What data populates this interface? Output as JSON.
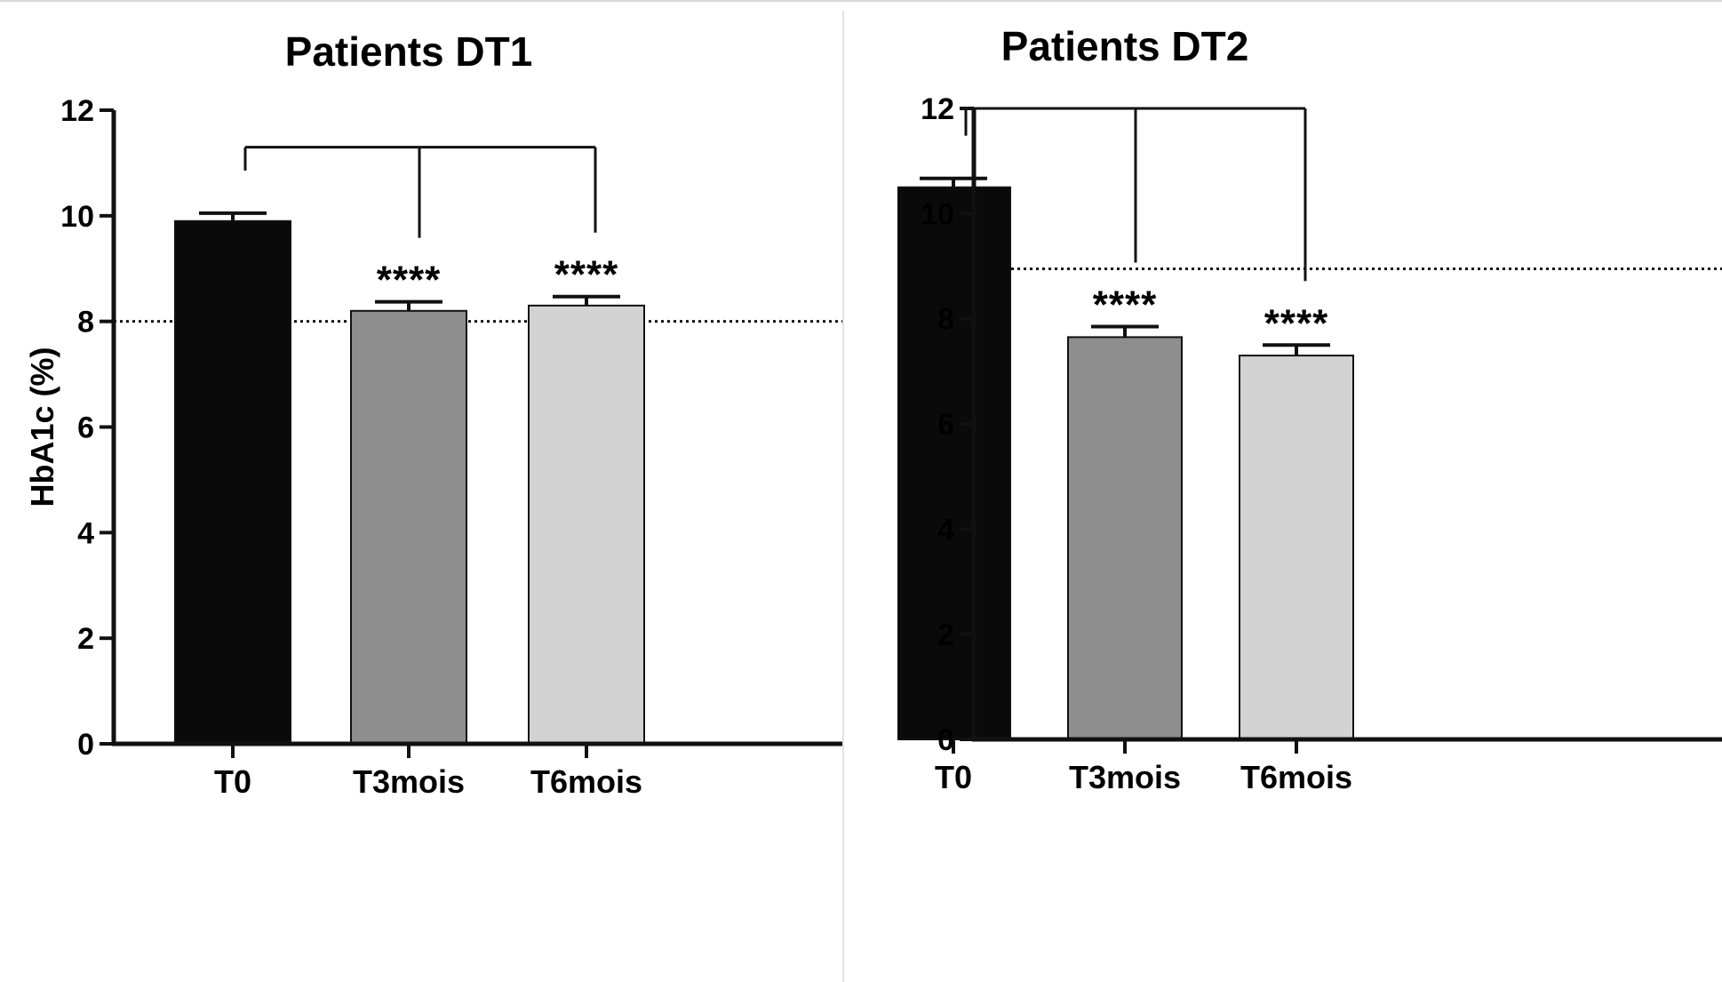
{
  "chart_data": [
    {
      "type": "bar",
      "title": "Patients DT1",
      "xlabel": "",
      "ylabel": "HbA1c (%)",
      "ylim": [
        0,
        12
      ],
      "yticks": [
        0,
        2,
        4,
        6,
        8,
        10,
        12
      ],
      "categories": [
        "T0",
        "T3mois",
        "T6mois"
      ],
      "values": [
        9.9,
        8.2,
        8.3
      ],
      "error": [
        0.15,
        0.17,
        0.17
      ],
      "colors": [
        "#0a0a0a",
        "#8e8e8e",
        "#d3d3d3"
      ],
      "reference_line": 8.0,
      "significance": [
        "",
        "****",
        "****"
      ],
      "bracket_level": 11.3,
      "grid": false
    },
    {
      "type": "bar",
      "title": "Patients DT2",
      "xlabel": "",
      "ylabel": "HbA1c (%)",
      "ylim": [
        0,
        12
      ],
      "yticks": [
        0,
        2,
        4,
        6,
        8,
        10,
        12
      ],
      "categories": [
        "T0",
        "T3mois",
        "T6mois"
      ],
      "values": [
        10.5,
        7.65,
        7.3
      ],
      "error": [
        0.17,
        0.2,
        0.2
      ],
      "colors": [
        "#0a0a0a",
        "#8e8e8e",
        "#d3d3d3"
      ],
      "reference_line": 8.95,
      "significance": [
        "",
        "****",
        "****"
      ],
      "bracket_level": 12.0,
      "grid": false
    }
  ]
}
